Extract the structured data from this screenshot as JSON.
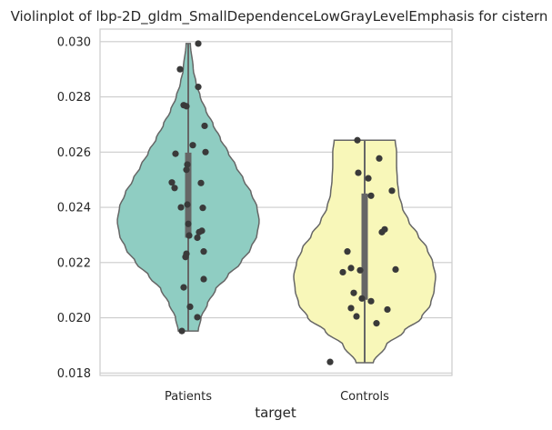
{
  "chart_data": {
    "type": "violin",
    "title": "Violinplot of lbp-2D_gldm_SmallDependenceLowGrayLevelEmphasis for cistern",
    "xlabel": "target",
    "ylabel": "",
    "ylim": [
      0.0178,
      0.0306
    ],
    "yticks": [
      "0.018",
      "0.020",
      "0.022",
      "0.024",
      "0.026",
      "0.028",
      "0.030"
    ],
    "grid": "horizontal",
    "categories": [
      "Patients",
      "Controls"
    ],
    "colors": {
      "Patients": "#8fcdc2",
      "Controls": "#f8f7b9",
      "outline": "#666666",
      "points": "#3a3a3a",
      "box": "#666666"
    },
    "violins": [
      {
        "name": "Patients",
        "min": 0.01952,
        "max": 0.02993,
        "q1": 0.0229,
        "median": 0.02405,
        "q3": 0.02598,
        "profile": [
          [
            0.01952,
            0.14
          ],
          [
            0.02,
            0.18
          ],
          [
            0.0205,
            0.27
          ],
          [
            0.021,
            0.38
          ],
          [
            0.0215,
            0.55
          ],
          [
            0.022,
            0.74
          ],
          [
            0.0225,
            0.88
          ],
          [
            0.023,
            0.97
          ],
          [
            0.0235,
            1.0
          ],
          [
            0.024,
            0.97
          ],
          [
            0.0245,
            0.89
          ],
          [
            0.025,
            0.78
          ],
          [
            0.0255,
            0.67
          ],
          [
            0.026,
            0.56
          ],
          [
            0.0265,
            0.45
          ],
          [
            0.027,
            0.35
          ],
          [
            0.0275,
            0.25
          ],
          [
            0.028,
            0.17
          ],
          [
            0.0285,
            0.11
          ],
          [
            0.029,
            0.07
          ],
          [
            0.02993,
            0.03
          ]
        ],
        "points": [
          [
            0.02993,
            0.11
          ],
          [
            0.029,
            -0.09
          ],
          [
            0.02836,
            0.11
          ],
          [
            0.0277,
            -0.05
          ],
          [
            0.02766,
            -0.02
          ],
          [
            0.02695,
            0.18
          ],
          [
            0.02625,
            0.05
          ],
          [
            0.026,
            0.19
          ],
          [
            0.02594,
            -0.14
          ],
          [
            0.02555,
            -0.01
          ],
          [
            0.02536,
            -0.02
          ],
          [
            0.0249,
            -0.18
          ],
          [
            0.02488,
            0.14
          ],
          [
            0.0247,
            -0.15
          ],
          [
            0.0241,
            -0.01
          ],
          [
            0.024,
            -0.08
          ],
          [
            0.02398,
            0.16
          ],
          [
            0.0234,
            0.0
          ],
          [
            0.02315,
            0.15
          ],
          [
            0.0231,
            0.12
          ],
          [
            0.02298,
            0.01
          ],
          [
            0.0229,
            0.1
          ],
          [
            0.0224,
            0.17
          ],
          [
            0.02232,
            -0.02
          ],
          [
            0.0222,
            -0.03
          ],
          [
            0.0214,
            0.17
          ],
          [
            0.0211,
            -0.05
          ],
          [
            0.0204,
            0.02
          ],
          [
            0.02002,
            0.1
          ],
          [
            0.01952,
            -0.07
          ]
        ]
      },
      {
        "name": "Controls",
        "min": 0.01837,
        "max": 0.02643,
        "q1": 0.02065,
        "median": 0.0218,
        "q3": 0.0245,
        "profile": [
          [
            0.01837,
            0.12
          ],
          [
            0.019,
            0.3
          ],
          [
            0.0195,
            0.55
          ],
          [
            0.02,
            0.8
          ],
          [
            0.0205,
            0.93
          ],
          [
            0.021,
            0.98
          ],
          [
            0.0215,
            1.0
          ],
          [
            0.022,
            0.96
          ],
          [
            0.0225,
            0.88
          ],
          [
            0.023,
            0.75
          ],
          [
            0.0235,
            0.62
          ],
          [
            0.024,
            0.53
          ],
          [
            0.0245,
            0.48
          ],
          [
            0.025,
            0.46
          ],
          [
            0.0255,
            0.45
          ],
          [
            0.026,
            0.45
          ],
          [
            0.02643,
            0.43
          ]
        ],
        "points": [
          [
            0.02643,
            -0.08
          ],
          [
            0.02577,
            0.16
          ],
          [
            0.02525,
            -0.07
          ],
          [
            0.02505,
            0.04
          ],
          [
            0.0246,
            0.3
          ],
          [
            0.02442,
            0.07
          ],
          [
            0.0232,
            0.22
          ],
          [
            0.0231,
            0.19
          ],
          [
            0.0224,
            -0.19
          ],
          [
            0.0218,
            -0.15
          ],
          [
            0.02175,
            0.34
          ],
          [
            0.02172,
            -0.05
          ],
          [
            0.02165,
            -0.24
          ],
          [
            0.0209,
            -0.12
          ],
          [
            0.0207,
            -0.03
          ],
          [
            0.0206,
            0.07
          ],
          [
            0.02035,
            -0.15
          ],
          [
            0.0203,
            0.25
          ],
          [
            0.02005,
            -0.09
          ],
          [
            0.0198,
            0.13
          ],
          [
            0.0184,
            -0.38
          ]
        ]
      }
    ]
  }
}
